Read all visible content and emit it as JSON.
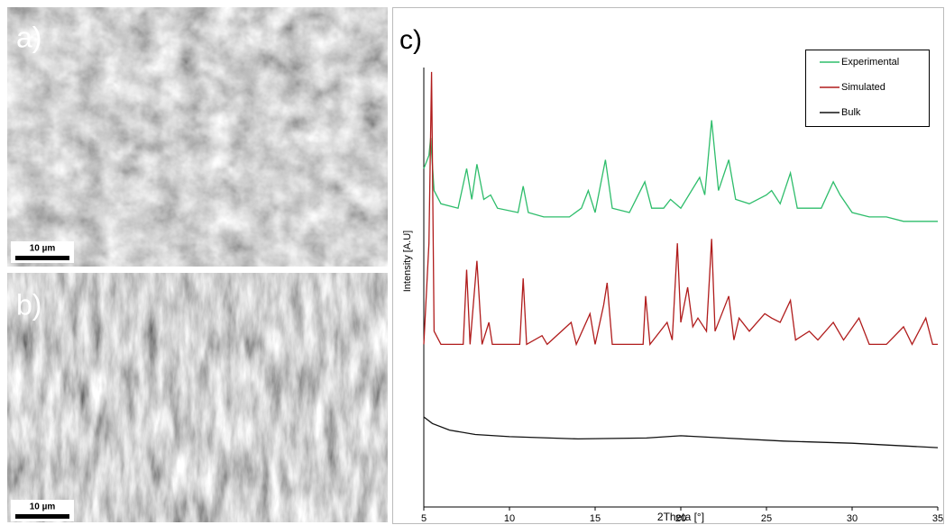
{
  "panels": [
    {
      "label": "a)",
      "scale_bar": "10 µm"
    },
    {
      "label": "b)",
      "scale_bar": "10 µm"
    }
  ],
  "chart_data": {
    "type": "line",
    "title": "c)",
    "x_label": "2Theta [°]",
    "y_label": "Intensity [A.U]",
    "xlim": [
      5,
      35
    ],
    "xticks": [
      5,
      10,
      15,
      20,
      25,
      30,
      35
    ],
    "ylim": [
      0,
      100
    ],
    "legend": "top-right",
    "series": [
      {
        "name": "Experimental",
        "color": "#2ebd6b",
        "x": [
          5.0,
          5.3,
          5.4,
          5.6,
          6.0,
          7.0,
          7.5,
          7.8,
          8.1,
          8.5,
          8.9,
          9.3,
          10.5,
          10.8,
          11.1,
          12.0,
          13.5,
          14.2,
          14.6,
          15.0,
          15.6,
          16.0,
          17.0,
          17.9,
          18.3,
          19.0,
          19.4,
          20.0,
          21.1,
          21.4,
          21.8,
          22.2,
          22.8,
          23.2,
          24.0,
          25.0,
          25.3,
          25.8,
          26.4,
          26.8,
          27.5,
          28.2,
          28.9,
          29.3,
          30.0,
          31.0,
          32.0,
          33.0,
          34.0,
          35.0
        ],
        "values": [
          77,
          80,
          84,
          72,
          69,
          68,
          77,
          70,
          78,
          70,
          71,
          68,
          67,
          73,
          67,
          66,
          66,
          68,
          72,
          67,
          79,
          68,
          67,
          74,
          68,
          68,
          70,
          68,
          75,
          71,
          88,
          72,
          79,
          70,
          69,
          71,
          72,
          69,
          76,
          68,
          68,
          68,
          74,
          71,
          67,
          66,
          66,
          65,
          65,
          65
        ]
      },
      {
        "name": "Simulated",
        "color": "#b01c1c",
        "x": [
          5.0,
          5.3,
          5.45,
          5.6,
          6.0,
          7.3,
          7.5,
          7.7,
          8.1,
          8.4,
          8.8,
          9.0,
          10.6,
          10.8,
          11.0,
          11.9,
          12.2,
          13.6,
          13.9,
          14.7,
          15.0,
          15.5,
          15.7,
          16.0,
          17.8,
          17.95,
          18.2,
          19.2,
          19.5,
          19.8,
          20.0,
          20.4,
          20.7,
          21.0,
          21.5,
          21.8,
          22.0,
          22.8,
          23.1,
          23.4,
          24.0,
          24.9,
          25.3,
          25.8,
          26.4,
          26.7,
          27.5,
          28.0,
          28.9,
          29.5,
          30.4,
          30.6,
          31.0,
          32.0,
          33.0,
          33.5,
          34.3,
          34.7,
          35.0
        ],
        "values": [
          37,
          60,
          99,
          40,
          37,
          37,
          54,
          37,
          56,
          37,
          42,
          37,
          37,
          52,
          37,
          39,
          37,
          42,
          37,
          44,
          37,
          46,
          51,
          37,
          37,
          48,
          37,
          42,
          38,
          60,
          42,
          50,
          41,
          43,
          40,
          61,
          40,
          48,
          38,
          43,
          40,
          44,
          43,
          42,
          47,
          38,
          40,
          38,
          42,
          38,
          43,
          41,
          37,
          37,
          41,
          37,
          43,
          37,
          37
        ]
      },
      {
        "name": "Bulk",
        "color": "#111111",
        "x": [
          5.0,
          5.5,
          6.5,
          8.0,
          10.0,
          14.0,
          18.0,
          20.0,
          22.0,
          26.0,
          30.0,
          35.0
        ],
        "values": [
          20.5,
          19,
          17.5,
          16.5,
          16,
          15.5,
          15.7,
          16.2,
          15.8,
          15,
          14.5,
          13.5
        ]
      }
    ]
  }
}
